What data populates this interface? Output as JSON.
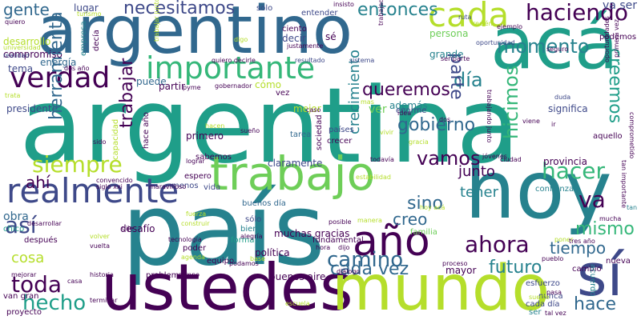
{
  "colors": {
    "background": "#ffffff",
    "dark_purple": "#440154",
    "indigo": "#3e4989",
    "blue": "#31688e",
    "teal": "#26828e",
    "teal_green": "#1f9e89",
    "green": "#35b779",
    "light_green": "#6ece58",
    "lime": "#b5de2b"
  },
  "words": [
    {
      "id": "argentina",
      "text": "argentina"
    },
    {
      "id": "pais",
      "text": "país"
    },
    {
      "id": "argentino",
      "text": "argentino"
    },
    {
      "id": "hoy",
      "text": "hoy"
    },
    {
      "id": "ustedes",
      "text": "ustedes"
    },
    {
      "id": "mundo",
      "text": "mundo"
    },
    {
      "id": "aca",
      "text": "acá"
    },
    {
      "id": "trabajo",
      "text": "trabajo"
    },
    {
      "id": "si",
      "text": "sí"
    },
    {
      "id": "realmente",
      "text": "realmente"
    },
    {
      "id": "importante",
      "text": "importante"
    },
    {
      "id": "ano",
      "text": "año"
    },
    {
      "id": "cada",
      "text": "cada"
    },
    {
      "id": "verdad",
      "text": "verdad"
    },
    {
      "id": "haciendo",
      "text": "haciendo"
    },
    {
      "id": "necesitamos",
      "text": "necesitamos"
    },
    {
      "id": "siempre",
      "text": "siempre"
    },
    {
      "id": "hacer",
      "text": "hacer"
    },
    {
      "id": "ahora",
      "text": "ahora"
    },
    {
      "id": "toda",
      "text": "toda"
    },
    {
      "id": "hecho",
      "text": "hecho"
    },
    {
      "id": "asi",
      "text": "así"
    },
    {
      "id": "dia",
      "text": "día"
    },
    {
      "id": "queremos",
      "text": "queremos"
    },
    {
      "id": "entonces",
      "text": "entonces"
    },
    {
      "id": "gobierno",
      "text": "gobierno"
    },
    {
      "id": "momento",
      "text": "momento"
    },
    {
      "id": "cada_vez",
      "text": "cada vez"
    },
    {
      "id": "sino",
      "text": "sino"
    },
    {
      "id": "creo",
      "text": "creo"
    },
    {
      "id": "futuro",
      "text": "futuro"
    },
    {
      "id": "tiempo",
      "text": "tiempo"
    },
    {
      "id": "hace",
      "text": "hace"
    },
    {
      "id": "mismo",
      "text": "mismo"
    },
    {
      "id": "va",
      "text": "va"
    },
    {
      "id": "vamos",
      "text": "vamos"
    },
    {
      "id": "junto",
      "text": "junto"
    },
    {
      "id": "tener",
      "text": "tener"
    },
    {
      "id": "camino",
      "text": "camino"
    },
    {
      "id": "gente",
      "text": "gente"
    },
    {
      "id": "cosa",
      "text": "cosa"
    },
    {
      "id": "obra",
      "text": "obra"
    },
    {
      "id": "ahi",
      "text": "ahí"
    },
    {
      "id": "ver",
      "text": "ver"
    },
    {
      "id": "mejor",
      "text": "mejor"
    },
    {
      "id": "ademas",
      "text": "además"
    },
    {
      "id": "lugar",
      "text": "lugar"
    },
    {
      "id": "energia",
      "text": "energía"
    },
    {
      "id": "tema",
      "text": "tema"
    },
    {
      "id": "compromiso",
      "text": "compromiso"
    },
    {
      "id": "desarrollo",
      "text": "desarrollo"
    },
    {
      "id": "presidente",
      "text": "presidente"
    },
    {
      "id": "herramienta",
      "text": "herramienta"
    },
    {
      "id": "trabajar",
      "text": "trabajar"
    },
    {
      "id": "nueva",
      "text": "nueva"
    },
    {
      "id": "parte",
      "text": "parte"
    },
    {
      "id": "hicimos",
      "text": "hicimos"
    },
    {
      "id": "creemos",
      "text": "creemos"
    },
    {
      "id": "crecimiento",
      "text": "crecimiento"
    },
    {
      "id": "como",
      "text": "cómo"
    },
    {
      "id": "puede",
      "text": "puede"
    },
    {
      "id": "partir",
      "text": "partir"
    },
    {
      "id": "solo",
      "text": "solo"
    },
    {
      "id": "entender",
      "text": "entender"
    },
    {
      "id": "decir",
      "text": "decir"
    },
    {
      "id": "se",
      "text": "sé"
    },
    {
      "id": "persona",
      "text": "persona"
    },
    {
      "id": "grande",
      "text": "grande"
    },
    {
      "id": "ciento",
      "text": "ciento"
    },
    {
      "id": "va_ser",
      "text": "va ser"
    },
    {
      "id": "podemos",
      "text": "podemos"
    },
    {
      "id": "significa",
      "text": "significa"
    },
    {
      "id": "provincia",
      "text": "provincia"
    },
    {
      "id": "confianza",
      "text": "confianza"
    },
    {
      "id": "aquello",
      "text": "aquello"
    },
    {
      "id": "sabemos",
      "text": "sabemos"
    },
    {
      "id": "claramente",
      "text": "claramente"
    },
    {
      "id": "espero",
      "text": "espero"
    },
    {
      "id": "vida",
      "text": "vida"
    },
    {
      "id": "menos",
      "text": "menos"
    },
    {
      "id": "buenos_dia",
      "text": "buenos día"
    },
    {
      "id": "solo2",
      "text": "sólo"
    },
    {
      "id": "bien",
      "text": "bien"
    },
    {
      "id": "forma",
      "text": "forma"
    },
    {
      "id": "muchas_gracias",
      "text": "muchas gracias"
    },
    {
      "id": "familia",
      "text": "familia"
    },
    {
      "id": "fundamental",
      "text": "fundamental"
    },
    {
      "id": "politica",
      "text": "política"
    },
    {
      "id": "buenos_aire",
      "text": "buenos aire"
    },
    {
      "id": "mayor",
      "text": "mayor"
    },
    {
      "id": "poder",
      "text": "poder"
    },
    {
      "id": "equipo",
      "text": "equipo"
    },
    {
      "id": "problema",
      "text": "problema"
    },
    {
      "id": "desafio",
      "text": "desafío"
    },
    {
      "id": "despues",
      "text": "después"
    },
    {
      "id": "proyecto",
      "text": "proyecto"
    },
    {
      "id": "van_gran",
      "text": "van gran"
    },
    {
      "id": "chico",
      "text": "chico"
    },
    {
      "id": "primero",
      "text": "primero"
    },
    {
      "id": "tarea",
      "text": "tarea"
    },
    {
      "id": "sociedad",
      "text": "sociedad"
    },
    {
      "id": "paises",
      "text": "países"
    },
    {
      "id": "crecer",
      "text": "crecer"
    },
    {
      "id": "enorme",
      "text": "enorme"
    },
    {
      "id": "esfuerzo",
      "text": "esfuerzo"
    },
    {
      "id": "nunca",
      "text": "nunca"
    },
    {
      "id": "cada_dia",
      "text": "cada día"
    },
    {
      "id": "ser",
      "text": "ser"
    },
    {
      "id": "cambio",
      "text": "cambio"
    },
    {
      "id": "nueva2",
      "text": "nueva"
    },
    {
      "id": "acuerdo",
      "text": "acuerdo"
    },
    {
      "id": "hace_ano",
      "text": "hace año"
    },
    {
      "id": "capacidad",
      "text": "capacidad"
    },
    {
      "id": "vez",
      "text": "vez"
    },
    {
      "id": "quiero_decirle",
      "text": "quiero decirle"
    },
    {
      "id": "gobernador",
      "text": "gobernador"
    },
    {
      "id": "resultado",
      "text": "resultado"
    },
    {
      "id": "sistema",
      "text": "sistema"
    },
    {
      "id": "empresa",
      "text": "empresa"
    },
    {
      "id": "decia",
      "text": "decía"
    },
    {
      "id": "realidad",
      "text": "realidad"
    },
    {
      "id": "universidad",
      "text": "universidad"
    },
    {
      "id": "quiero",
      "text": "quiero"
    },
    {
      "id": "turismo",
      "text": "turismo"
    },
    {
      "id": "insisto",
      "text": "insisto"
    },
    {
      "id": "ruta",
      "text": "ruta"
    },
    {
      "id": "ejemplo",
      "text": "ejemplo"
    },
    {
      "id": "oportunidad",
      "text": "oportunidad"
    },
    {
      "id": "seguro",
      "text": "seguro"
    },
    {
      "id": "oportunidades",
      "text": "oportunidades"
    },
    {
      "id": "primera_vez",
      "text": "primera vez"
    },
    {
      "id": "ser_parte",
      "text": "ser parte"
    },
    {
      "id": "justamente",
      "text": "justamente"
    },
    {
      "id": "digo",
      "text": "digo"
    },
    {
      "id": "trabajadores",
      "text": "trabajadores"
    },
    {
      "id": "trabajar_junto",
      "text": "trabajar junto"
    },
    {
      "id": "dos_ano",
      "text": "dos año"
    },
    {
      "id": "duda",
      "text": "duda"
    },
    {
      "id": "idea",
      "text": "idea"
    },
    {
      "id": "dos",
      "text": "dos"
    },
    {
      "id": "trabajando_junto",
      "text": "trabajando junto"
    },
    {
      "id": "comprometido",
      "text": "comprometido"
    },
    {
      "id": "tan_importante",
      "text": "tan importante"
    },
    {
      "id": "mucha",
      "text": "mucha"
    },
    {
      "id": "tan",
      "text": "tan"
    },
    {
      "id": "poner",
      "text": "poner"
    },
    {
      "id": "tres_ano",
      "text": "tres año"
    },
    {
      "id": "pueblo",
      "text": "pueblo"
    },
    {
      "id": "hora",
      "text": "hora"
    },
    {
      "id": "dijo",
      "text": "dijo"
    },
    {
      "id": "posible",
      "text": "posible"
    },
    {
      "id": "manera",
      "text": "manera"
    },
    {
      "id": "hoy_aca",
      "text": "hoy acá"
    },
    {
      "id": "dialogo",
      "text": "diálogo"
    },
    {
      "id": "proceso",
      "text": "proceso"
    },
    {
      "id": "pasa",
      "text": "pasa"
    },
    {
      "id": "suerte",
      "text": "suerte"
    },
    {
      "id": "tal_vez",
      "text": "tal vez"
    },
    {
      "id": "terminar",
      "text": "terminar"
    },
    {
      "id": "escuela",
      "text": "escuela"
    },
    {
      "id": "casa",
      "text": "casa"
    },
    {
      "id": "mejorar",
      "text": "mejorar"
    },
    {
      "id": "historia",
      "text": "historia"
    },
    {
      "id": "campo",
      "text": "campo"
    },
    {
      "id": "agenda",
      "text": "agenda"
    },
    {
      "id": "base",
      "text": "base"
    },
    {
      "id": "alegria",
      "text": "alegría"
    },
    {
      "id": "tecnologia",
      "text": "tecnología"
    },
    {
      "id": "construir",
      "text": "construir"
    },
    {
      "id": "volver",
      "text": "volver"
    },
    {
      "id": "vuelta",
      "text": "vuelta"
    },
    {
      "id": "desarrollar",
      "text": "desarrollar"
    },
    {
      "id": "fuerza",
      "text": "fuerza"
    },
    {
      "id": "dije",
      "text": "dije"
    },
    {
      "id": "convencido",
      "text": "convencido"
    },
    {
      "id": "siglo_xxi",
      "text": "siglo xxi"
    },
    {
      "id": "maravilloso",
      "text": "maravilloso"
    },
    {
      "id": "lograr",
      "text": "lograr"
    },
    {
      "id": "jovenes",
      "text": "jóvenes"
    },
    {
      "id": "ciudad",
      "text": "ciudad"
    },
    {
      "id": "todavia",
      "text": "todavía"
    },
    {
      "id": "estabilidad",
      "text": "estabilidad"
    },
    {
      "id": "sueno",
      "text": "sueño"
    },
    {
      "id": "caso",
      "text": "caso"
    },
    {
      "id": "hacen",
      "text": "hacen"
    },
    {
      "id": "viene",
      "text": "viene"
    },
    {
      "id": "trata",
      "text": "trata"
    },
    {
      "id": "sido",
      "text": "sido"
    },
    {
      "id": "vivir",
      "text": "vivir"
    },
    {
      "id": "gracia",
      "text": "gracia"
    },
    {
      "id": "ir",
      "text": "ir"
    },
    {
      "id": "pyme",
      "text": "pyme"
    },
    {
      "id": "mas",
      "text": "mas"
    },
    {
      "id": "podamos",
      "text": "podamos"
    },
    {
      "id": "recien",
      "text": "recién"
    }
  ]
}
